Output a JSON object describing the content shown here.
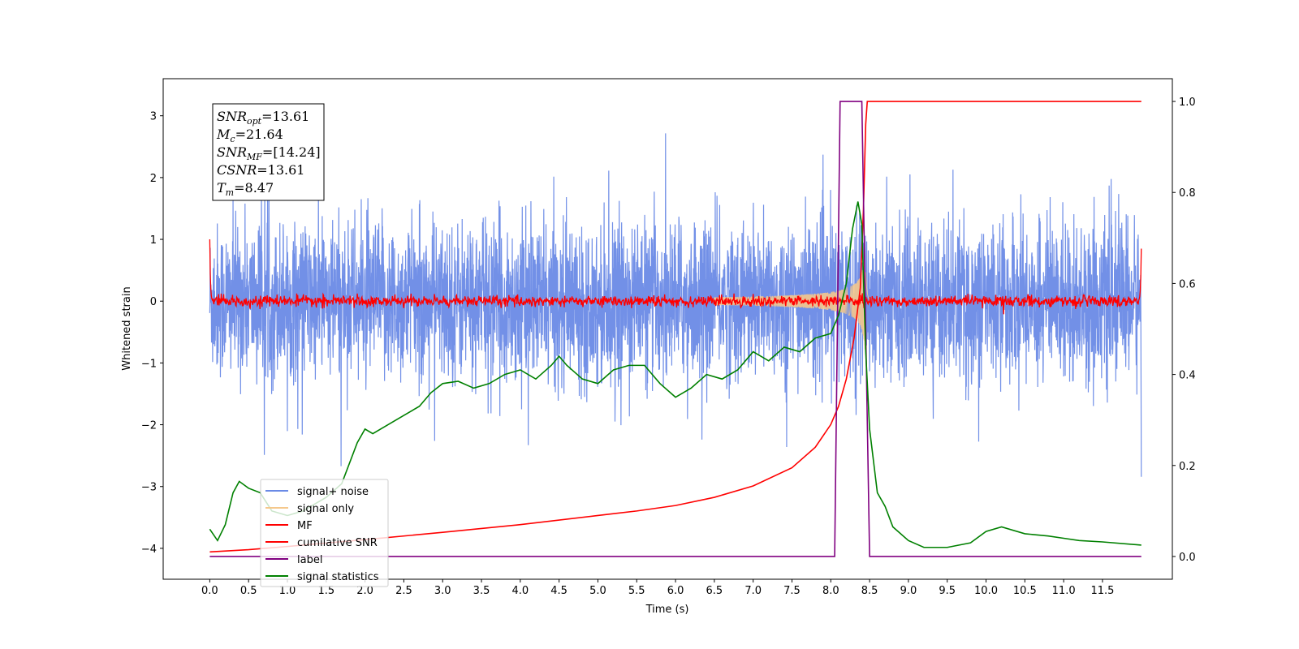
{
  "chart_data": {
    "type": "line",
    "xlabel": "Time (s)",
    "ylabel": "Whitened strain",
    "xlim": [
      -0.6,
      12.4
    ],
    "ylim": [
      -4.5,
      3.6
    ],
    "y2lim": [
      -0.05,
      1.05
    ],
    "x_ticks": [
      "0.0",
      "0.5",
      "1.0",
      "1.5",
      "2.0",
      "2.5",
      "3.0",
      "3.5",
      "4.0",
      "4.5",
      "5.0",
      "5.5",
      "6.0",
      "6.5",
      "7.0",
      "7.5",
      "8.0",
      "8.5",
      "9.0",
      "9.5",
      "10.0",
      "10.5",
      "11.0",
      "11.5"
    ],
    "y_ticks": [
      "3",
      "2",
      "1",
      "0",
      "−1",
      "−2",
      "−3",
      "−4"
    ],
    "y2_ticks": [
      "0.0",
      "0.2",
      "0.4",
      "0.6",
      "0.8",
      "1.0"
    ],
    "annotation": [
      {
        "sym": "SNR",
        "sub": "opt",
        "value": "=13.61"
      },
      {
        "sym": "M",
        "sub": "c",
        "value": "=21.64"
      },
      {
        "sym": "SNR",
        "sub": "MF",
        "value": "=[14.24]"
      },
      {
        "sym": "CSNR",
        "sub": "",
        "value": "=13.61"
      },
      {
        "sym": "T",
        "sub": "m",
        "value": "=8.47"
      }
    ],
    "legend_placement": "lower-left",
    "series": [
      {
        "name": "signal+ noise",
        "color": "#6a8ae6",
        "axis": "left",
        "description_values": {
          "x_range": [
            0.0,
            12.0
          ],
          "approx_peak_to_peak": [
            -3.35,
            3.2
          ]
        }
      },
      {
        "name": "signal only",
        "color": "#f5c88c",
        "axis": "left",
        "chirp_peak_time": 8.45,
        "chirp_peak_amplitude": 1.0
      },
      {
        "name": "MF",
        "color": "#ff0000",
        "axis": "left",
        "x_range": [
          0.0,
          12.0
        ],
        "edge_values": [
          1.0,
          0.85
        ],
        "noise_amplitude": 0.08
      },
      {
        "name": "cumilative SNR",
        "color": "#ff0000",
        "axis": "right",
        "x": [
          0.0,
          0.5,
          1.0,
          2.0,
          3.0,
          4.0,
          5.0,
          5.5,
          6.0,
          6.5,
          7.0,
          7.5,
          7.8,
          8.0,
          8.1,
          8.2,
          8.3,
          8.38,
          8.42,
          8.45,
          8.47,
          11.5,
          12.0
        ],
        "y": [
          0.01,
          0.015,
          0.022,
          0.037,
          0.053,
          0.07,
          0.09,
          0.1,
          0.112,
          0.13,
          0.155,
          0.195,
          0.24,
          0.29,
          0.33,
          0.39,
          0.48,
          0.59,
          0.76,
          0.95,
          1.0,
          1.0,
          1.0
        ]
      },
      {
        "name": "label",
        "color": "#800080",
        "axis": "right",
        "x": [
          0.0,
          8.05,
          8.12,
          8.4,
          8.5,
          12.0
        ],
        "y": [
          0.0,
          0.0,
          1.0,
          1.0,
          0.0,
          0.0
        ]
      },
      {
        "name": "signal statistics",
        "color": "#008000",
        "axis": "right",
        "x": [
          0.0,
          0.1,
          0.2,
          0.3,
          0.38,
          0.5,
          0.65,
          0.8,
          1.0,
          1.2,
          1.5,
          1.7,
          1.9,
          2.0,
          2.1,
          2.3,
          2.5,
          2.7,
          2.85,
          3.0,
          3.2,
          3.4,
          3.6,
          3.8,
          4.0,
          4.2,
          4.4,
          4.5,
          4.6,
          4.8,
          5.0,
          5.2,
          5.4,
          5.6,
          5.8,
          6.0,
          6.2,
          6.4,
          6.6,
          6.8,
          7.0,
          7.2,
          7.4,
          7.6,
          7.8,
          8.0,
          8.1,
          8.2,
          8.28,
          8.35,
          8.4,
          8.45,
          8.5,
          8.6,
          8.7,
          8.8,
          9.0,
          9.2,
          9.5,
          9.8,
          10.0,
          10.2,
          10.5,
          10.8,
          11.0,
          11.2,
          11.5,
          12.0
        ],
        "y": [
          0.06,
          0.035,
          0.07,
          0.14,
          0.165,
          0.15,
          0.14,
          0.1,
          0.09,
          0.1,
          0.13,
          0.16,
          0.25,
          0.28,
          0.27,
          0.29,
          0.31,
          0.33,
          0.36,
          0.38,
          0.385,
          0.37,
          0.38,
          0.4,
          0.41,
          0.39,
          0.42,
          0.44,
          0.42,
          0.39,
          0.38,
          0.41,
          0.42,
          0.42,
          0.38,
          0.35,
          0.37,
          0.4,
          0.39,
          0.41,
          0.45,
          0.43,
          0.46,
          0.45,
          0.48,
          0.49,
          0.53,
          0.6,
          0.72,
          0.78,
          0.73,
          0.45,
          0.28,
          0.14,
          0.11,
          0.065,
          0.035,
          0.02,
          0.02,
          0.03,
          0.055,
          0.065,
          0.05,
          0.045,
          0.04,
          0.035,
          0.032,
          0.025
        ]
      }
    ]
  }
}
